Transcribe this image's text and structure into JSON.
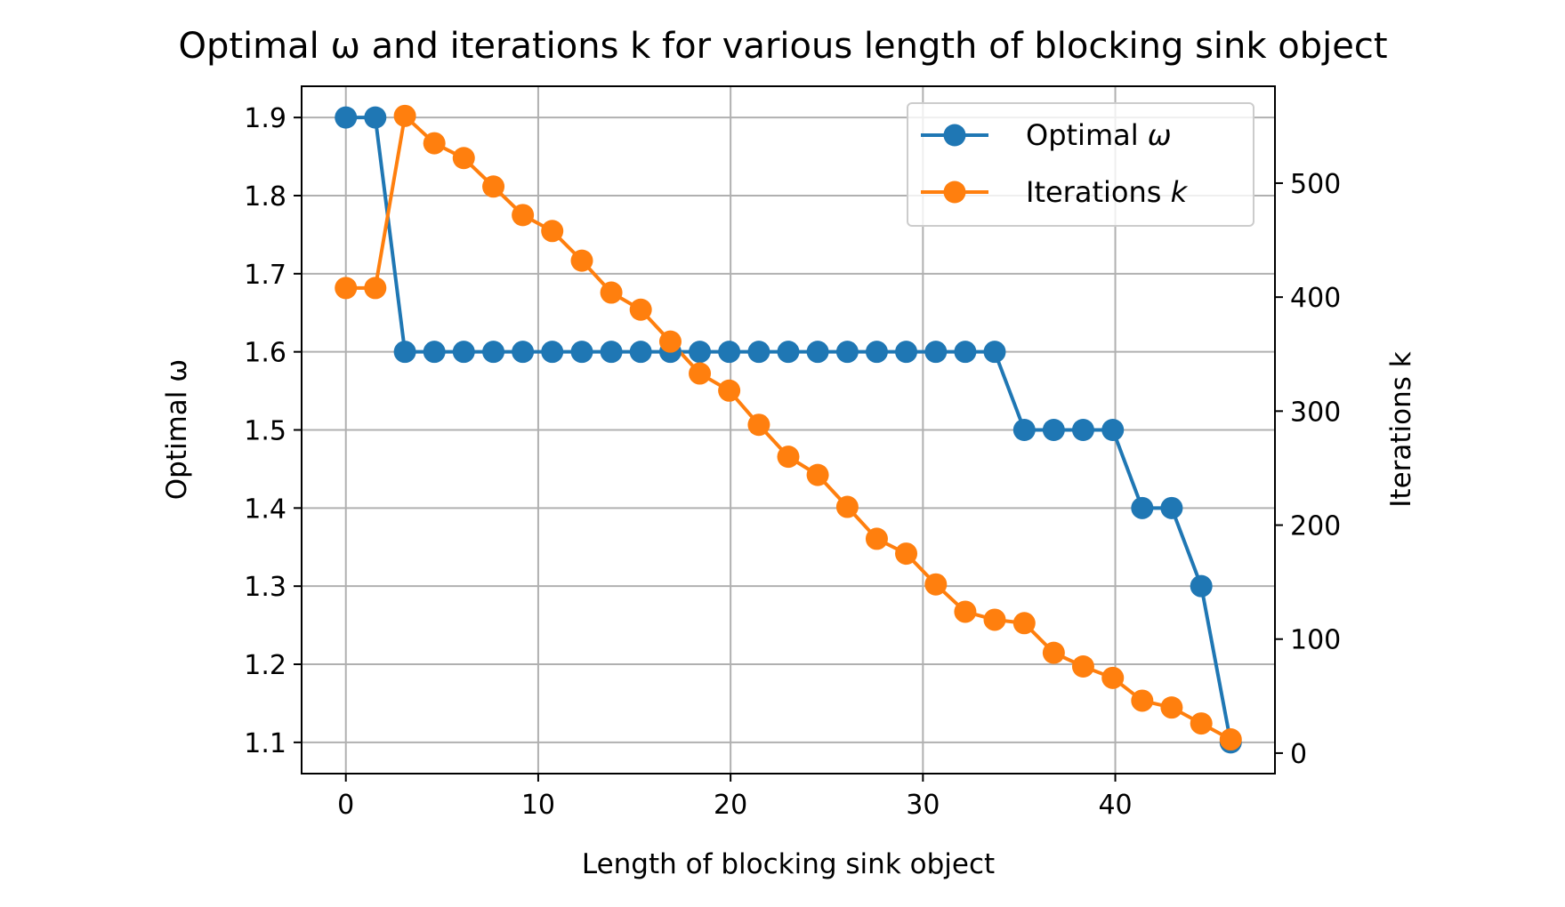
{
  "chart_data": {
    "type": "line",
    "title": "Optimal ω and iterations k for various length of blocking sink object",
    "xlabel": "Length of blocking sink object",
    "ylabel_left": "Optimal ω",
    "ylabel_right": "Iterations k",
    "xlim": [
      -2.3,
      48.3
    ],
    "ylim_left": [
      1.06,
      1.94
    ],
    "ylim_right": [
      -18,
      585
    ],
    "x_ticks": [
      0,
      10,
      20,
      30,
      40
    ],
    "y_left_ticks": [
      "1.1",
      "1.2",
      "1.3",
      "1.4",
      "1.5",
      "1.6",
      "1.7",
      "1.8",
      "1.9"
    ],
    "y_right_ticks": [
      0,
      100,
      200,
      300,
      400,
      500
    ],
    "grid": true,
    "legend_position": "upper right",
    "x": [
      0.0,
      1.53,
      3.07,
      4.6,
      6.13,
      7.67,
      9.2,
      10.73,
      12.27,
      13.8,
      15.33,
      16.87,
      18.4,
      19.93,
      21.47,
      23.0,
      24.53,
      26.07,
      27.6,
      29.13,
      30.67,
      32.2,
      33.73,
      35.27,
      36.8,
      38.33,
      39.87,
      41.4,
      42.93,
      44.47,
      46.0
    ],
    "series": [
      {
        "name": "Optimal ω",
        "axis": "left",
        "color": "#1f77b4",
        "values": [
          1.9,
          1.9,
          1.6,
          1.6,
          1.6,
          1.6,
          1.6,
          1.6,
          1.6,
          1.6,
          1.6,
          1.6,
          1.6,
          1.6,
          1.6,
          1.6,
          1.6,
          1.6,
          1.6,
          1.6,
          1.6,
          1.6,
          1.6,
          1.5,
          1.5,
          1.5,
          1.5,
          1.4,
          1.4,
          1.3,
          1.1
        ]
      },
      {
        "name": "Iterations k",
        "axis": "right",
        "color": "#ff7f0e",
        "values": [
          408,
          408,
          559,
          535,
          522,
          497,
          472,
          458,
          432,
          404,
          389,
          361,
          333,
          318,
          288,
          260,
          244,
          216,
          188,
          175,
          148,
          124,
          117,
          114,
          88,
          76,
          66,
          46,
          40,
          26,
          12
        ]
      }
    ]
  }
}
